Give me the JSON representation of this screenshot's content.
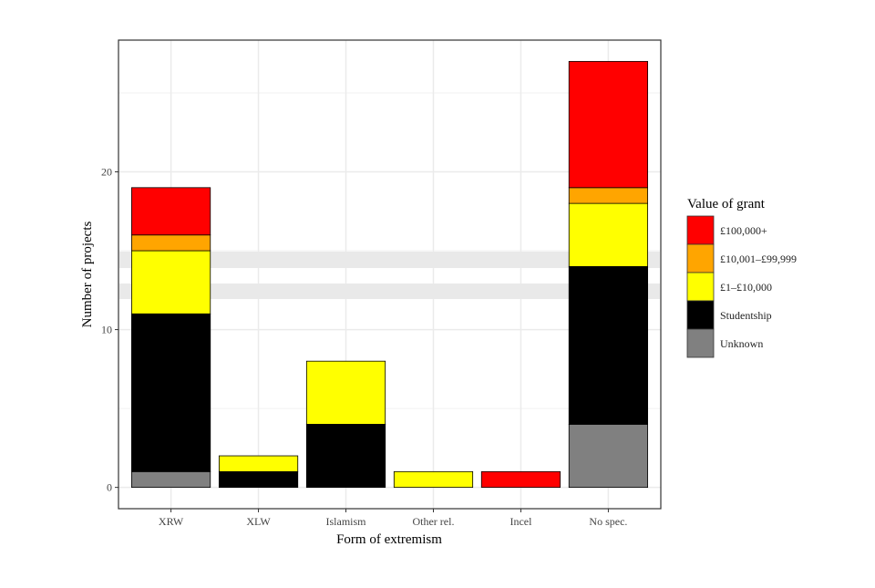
{
  "chart_data": {
    "type": "bar",
    "stacked": true,
    "title": "",
    "xlabel": "Form of extremism",
    "ylabel": "Number of projects",
    "categories": [
      "XRW",
      "XLW",
      "Islamism",
      "Other rel.",
      "Incel",
      "No spec."
    ],
    "ylim": [
      0,
      28
    ],
    "yticks": [
      0,
      10,
      20
    ],
    "grid": true,
    "legend": {
      "title": "Value of grant",
      "position": "right"
    },
    "series": [
      {
        "name": "Unknown",
        "color": "#808080",
        "values": [
          1,
          0,
          0,
          0,
          0,
          4
        ]
      },
      {
        "name": "Studentship",
        "color": "#000000",
        "values": [
          10,
          1,
          4,
          0,
          0,
          10
        ]
      },
      {
        "name": "£1–£10,000",
        "color": "#ffff00",
        "values": [
          4,
          1,
          4,
          1,
          0,
          4
        ]
      },
      {
        "name": "£10,001–£99,999",
        "color": "#ffa500",
        "values": [
          1,
          0,
          0,
          0,
          0,
          1
        ]
      },
      {
        "name": "£100,000+",
        "color": "#ff0000",
        "values": [
          3,
          0,
          0,
          0,
          1,
          8
        ]
      }
    ]
  }
}
